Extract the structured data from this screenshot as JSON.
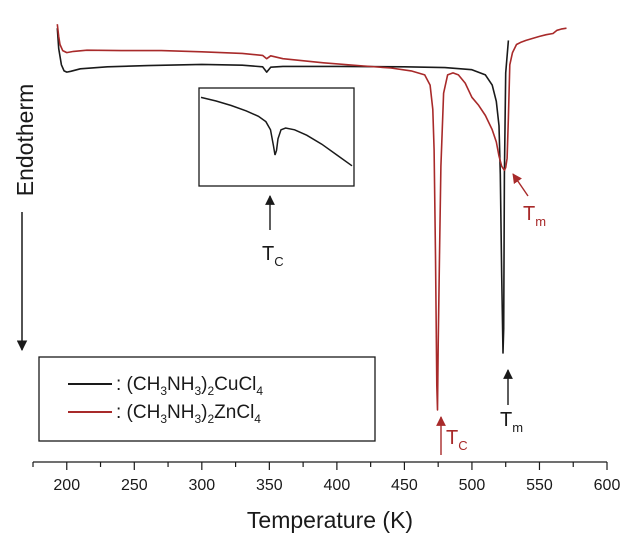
{
  "chart_data": {
    "type": "line",
    "xlabel": "Temperature (K)",
    "ylabel": "Endotherm",
    "xlim": [
      175,
      600
    ],
    "xticks_major": [
      200,
      250,
      300,
      350,
      400,
      450,
      500,
      550,
      600
    ],
    "xtick_labels": [
      "200",
      "250",
      "300",
      "350",
      "400",
      "450",
      "500",
      "550",
      "600"
    ],
    "xticks_minor_step": 25,
    "y_units": "arbitrary",
    "ylim": [
      0,
      100
    ],
    "legend": {
      "placement": "bottom-left",
      "entries": [
        {
          "series": 0,
          "prefix": ":  (CH",
          "parts": [
            [
              "3",
              "sub"
            ],
            [
              "NH",
              "n"
            ],
            [
              "3",
              "sub"
            ],
            [
              ")",
              "n"
            ],
            [
              "2",
              "sub"
            ],
            [
              "CuCl",
              "n"
            ],
            [
              "4",
              "sub"
            ]
          ]
        },
        {
          "series": 1,
          "prefix": ":  (CH",
          "parts": [
            [
              "3",
              "sub"
            ],
            [
              "NH",
              "n"
            ],
            [
              "3",
              "sub"
            ],
            [
              ")",
              "n"
            ],
            [
              "2",
              "sub"
            ],
            [
              "ZnCl",
              "n"
            ],
            [
              "4",
              "sub"
            ]
          ]
        }
      ]
    },
    "series": [
      {
        "name": "(CH3NH3)2CuCl4",
        "color": "#1a1a1a",
        "x": [
          193,
          194,
          196,
          198,
          200,
          203,
          210,
          230,
          260,
          300,
          330,
          345,
          348,
          351,
          360,
          400,
          450,
          480,
          500,
          510,
          515,
          518,
          520,
          521,
          522,
          523,
          523.5,
          524,
          525,
          527
        ],
        "y": [
          96,
          91,
          87,
          85.5,
          85.2,
          85.4,
          86,
          86.5,
          86.8,
          87.1,
          86.9,
          86.5,
          85.2,
          86.4,
          86.6,
          86.6,
          86.5,
          86.3,
          85.8,
          84.5,
          82,
          78,
          72,
          60,
          35,
          16,
          22,
          60,
          85,
          93
        ]
      },
      {
        "name": "(CH3NH3)2ZnCl4",
        "color": "#a82a2a",
        "x": [
          193,
          194,
          195,
          197,
          200,
          205,
          215,
          240,
          270,
          300,
          330,
          345,
          348,
          351,
          360,
          390,
          420,
          440,
          455,
          465,
          469,
          471,
          472,
          473,
          474,
          474.5,
          475,
          476,
          477,
          479,
          482,
          486,
          490,
          495,
          500,
          505,
          510,
          515,
          518,
          520,
          522,
          524,
          525,
          526,
          527,
          528,
          530,
          533,
          536,
          540,
          545,
          550,
          555,
          560,
          563,
          566,
          570
        ],
        "y": [
          97,
          94,
          92,
          90.5,
          90,
          90.3,
          90.6,
          90.5,
          90.5,
          90.2,
          89.8,
          89.3,
          88.5,
          89.2,
          88.5,
          87.5,
          86.7,
          86.2,
          85.5,
          84.5,
          82,
          76,
          66,
          40,
          8,
          2,
          18,
          40,
          62,
          80,
          84.5,
          85,
          84.5,
          82.5,
          79,
          77,
          74.5,
          71,
          68,
          64.5,
          62,
          61,
          61.7,
          64,
          74,
          87,
          90,
          92,
          92.5,
          93,
          93.5,
          94,
          94.4,
          94.7,
          95.5,
          95.8,
          96
        ]
      }
    ],
    "inset": {
      "series": 0,
      "x": [
        300,
        310,
        320,
        330,
        338,
        343,
        346,
        348,
        349,
        350,
        351,
        353,
        356,
        362,
        370,
        380,
        390,
        400
      ],
      "y": [
        94,
        90,
        85,
        79,
        73,
        67,
        58,
        40,
        30,
        35,
        48,
        58,
        60,
        58,
        52,
        42,
        30,
        18
      ]
    },
    "annotations": [
      {
        "id": "tc-cu",
        "main": "T",
        "sub": "C",
        "color": "#1a1a1a",
        "x": 348
      },
      {
        "id": "tc-zn",
        "main": "T",
        "sub": "C",
        "color": "#a82a2a",
        "x": 475
      },
      {
        "id": "tm-cu",
        "main": "T",
        "sub": "m",
        "color": "#1a1a1a",
        "x": 523
      },
      {
        "id": "tm-zn",
        "main": "T",
        "sub": "m",
        "color": "#a82a2a",
        "x": 526
      }
    ]
  }
}
